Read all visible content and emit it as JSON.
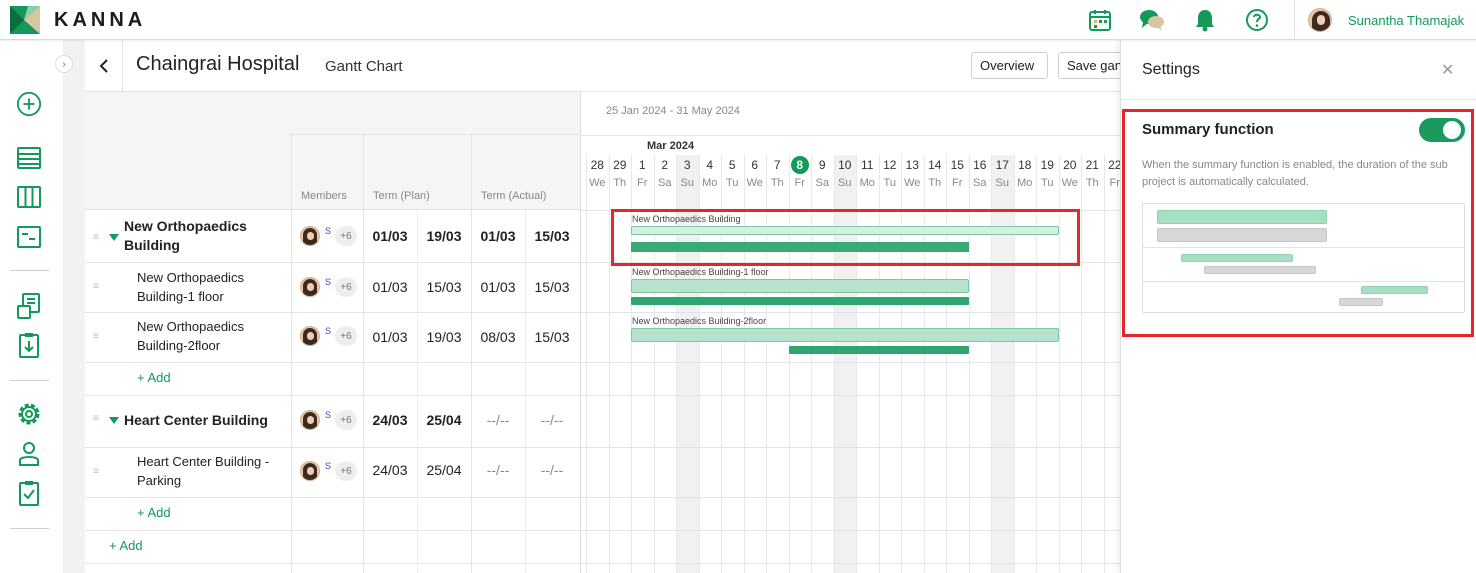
{
  "app": {
    "logo_text": "KANNA"
  },
  "user": {
    "name": "Sunantha Thamajak"
  },
  "page": {
    "title": "Chaingrai Hospital",
    "subtitle": "Gantt Chart"
  },
  "toolbar": {
    "overview_label": "Overview",
    "save_label": "Save gan"
  },
  "columns": {
    "members": "Members",
    "term_plan": "Term (Plan)",
    "term_actual": "Term (Actual)"
  },
  "rows": [
    {
      "name_line1": "New Orthopaedics",
      "name_line2": "Building",
      "plan_start": "01/03",
      "plan_end": "19/03",
      "act_start": "01/03",
      "act_end": "15/03",
      "more": "+6"
    },
    {
      "name_line1": "New Orthopaedics",
      "name_line2": "Building-1 floor",
      "plan_start": "01/03",
      "plan_end": "15/03",
      "act_start": "01/03",
      "act_end": "15/03",
      "more": "+6"
    },
    {
      "name_line1": "New Orthopaedics",
      "name_line2": "Building-2floor",
      "plan_start": "01/03",
      "plan_end": "19/03",
      "act_start": "08/03",
      "act_end": "15/03",
      "more": "+6"
    },
    {
      "name_line1": "Heart Center Building",
      "name_line2": "",
      "plan_start": "24/03",
      "plan_end": "25/04",
      "act_start": "--/--",
      "act_end": "--/--",
      "more": "+6"
    },
    {
      "name_line1": "Heart Center Building -",
      "name_line2": "Parking",
      "plan_start": "24/03",
      "plan_end": "25/04",
      "act_start": "--/--",
      "act_end": "--/--",
      "more": "+6"
    }
  ],
  "member_tag": "S",
  "add_label": "+ Add",
  "gantt": {
    "range": "25 Jan 2024 - 31 May 2024",
    "month": "Mar 2024",
    "days": [
      "28",
      "29",
      "1",
      "2",
      "3",
      "4",
      "5",
      "6",
      "7",
      "8",
      "9",
      "10",
      "11",
      "12",
      "13",
      "14",
      "15",
      "16",
      "17",
      "18",
      "19",
      "20",
      "21",
      "22"
    ],
    "daynames": [
      "We",
      "Th",
      "Fr",
      "Sa",
      "Su",
      "Mo",
      "Tu",
      "We",
      "Th",
      "Fr",
      "Sa",
      "Su",
      "Mo",
      "Tu",
      "We",
      "Th",
      "Fr",
      "Sa",
      "Su",
      "Mo",
      "Tu",
      "We",
      "Th",
      "Fr"
    ],
    "today": "8",
    "bar_labels": [
      "New Orthopaedics Building",
      "New Orthopaedics Building-1 floor",
      "New Orthopaedics Building-2floor"
    ]
  },
  "settings": {
    "title": "Settings",
    "summary_label": "Summary function",
    "summary_enabled": true,
    "description": "When the summary function is enabled, the duration of the sub project is automatically calculated."
  },
  "colors": {
    "accent": "#139a5a",
    "highlight": "#e5262a"
  }
}
